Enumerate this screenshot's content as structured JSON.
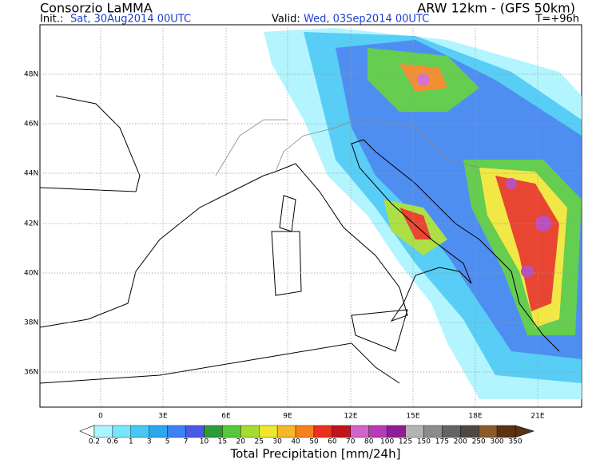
{
  "header": {
    "title": "Consorzio LaMMA",
    "model": "ARW 12km - (GFS 50km)",
    "init_label": "Init.:",
    "init_value": "Sat, 30Aug2014 00UTC",
    "valid_label": "Valid:",
    "valid_value": "Wed, 03Sep2014 00UTC",
    "lead_time": "T=+96h"
  },
  "map": {
    "lat_labels": [
      "48N",
      "46N",
      "44N",
      "42N",
      "40N",
      "38N",
      "36N"
    ],
    "lon_labels": [
      "0",
      "3E",
      "6E",
      "9E",
      "12E",
      "15E",
      "18E",
      "21E"
    ]
  },
  "colorbar": {
    "title": "Total Precipitation [mm/24h]",
    "levels": [
      "0.2",
      "0.6",
      "1",
      "3",
      "5",
      "7",
      "10",
      "15",
      "20",
      "25",
      "30",
      "40",
      "50",
      "60",
      "70",
      "80",
      "100",
      "125",
      "150",
      "175",
      "200",
      "250",
      "300",
      "350"
    ],
    "colors": [
      "#aaf5ff",
      "#78e6fa",
      "#46c8f5",
      "#2ea5f0",
      "#3c82f0",
      "#4b5ae6",
      "#2d9b37",
      "#55c83c",
      "#a5dc32",
      "#f0e632",
      "#f5b928",
      "#f5821e",
      "#e6321e",
      "#c3141e",
      "#d264c8",
      "#b43cb4",
      "#8c1e96",
      "#b4b4b4",
      "#8c8c8c",
      "#646464",
      "#504646",
      "#8c5a28",
      "#5a3214"
    ]
  }
}
